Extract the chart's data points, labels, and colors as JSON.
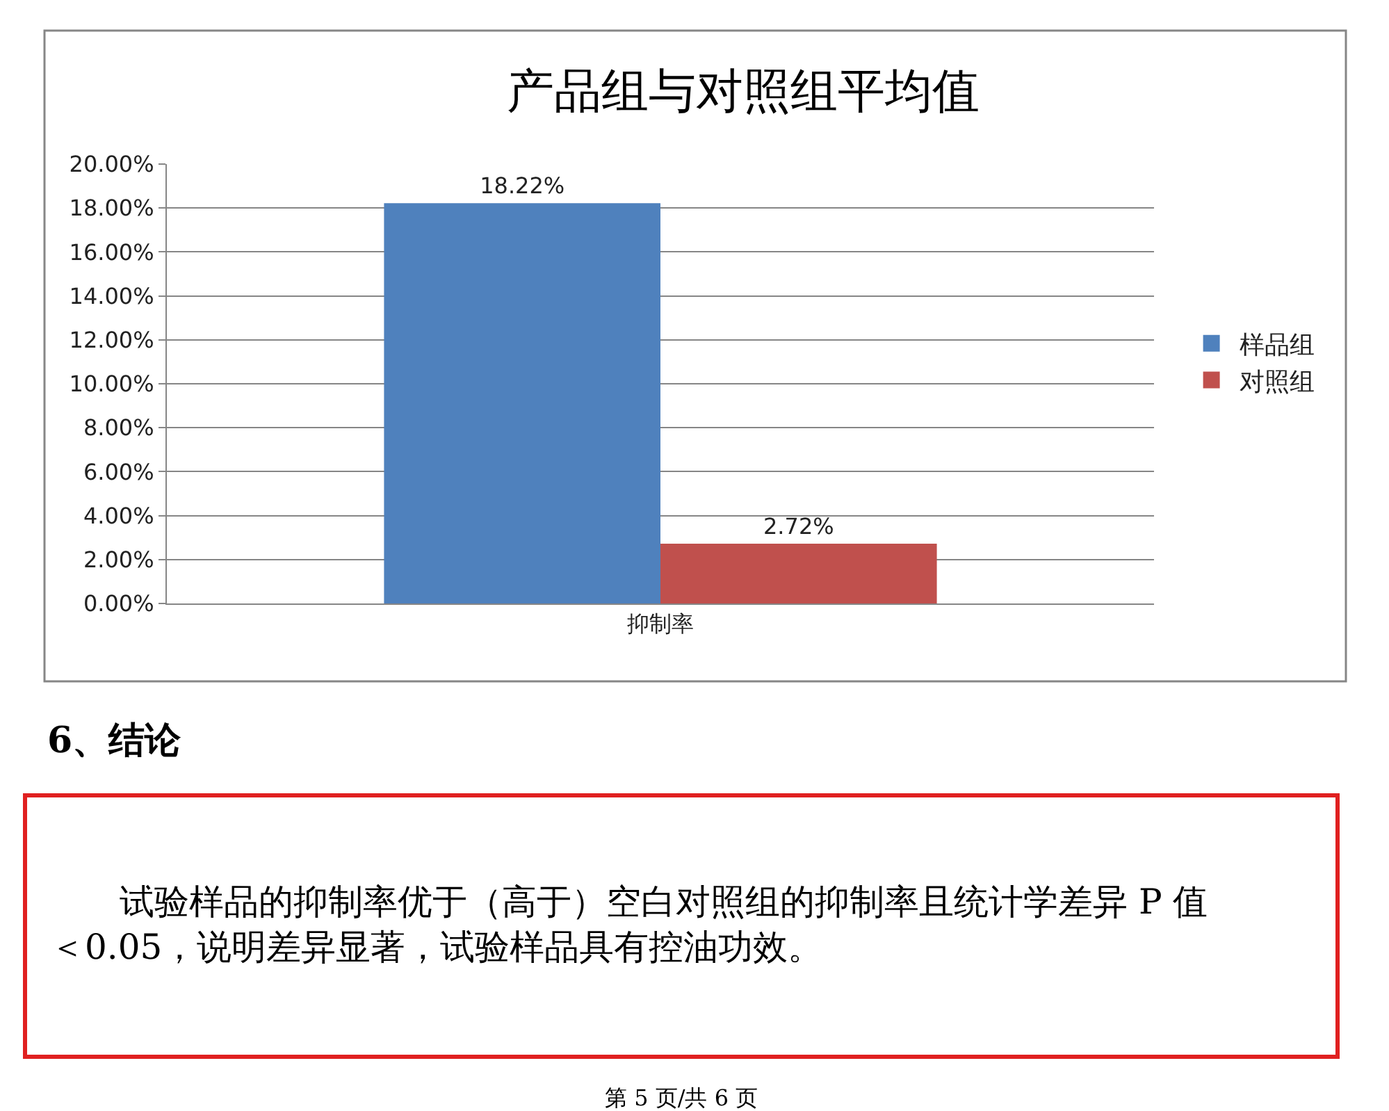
{
  "chart_data": {
    "type": "bar",
    "title": "产品组与对照组平均值",
    "categories": [
      "抑制率"
    ],
    "series": [
      {
        "name": "样品组",
        "color": "#4f81bd",
        "values": [
          18.22
        ],
        "value_labels": [
          "18.22%"
        ]
      },
      {
        "name": "对照组",
        "color": "#c0504d",
        "values": [
          2.72
        ],
        "value_labels": [
          "2.72%"
        ]
      }
    ],
    "ylim": [
      0,
      20
    ],
    "yticks": [
      {
        "value": 0,
        "label": "0.00%"
      },
      {
        "value": 2,
        "label": "2.00%"
      },
      {
        "value": 4,
        "label": "4.00%"
      },
      {
        "value": 6,
        "label": "6.00%"
      },
      {
        "value": 8,
        "label": "8.00%"
      },
      {
        "value": 10,
        "label": "10.00%"
      },
      {
        "value": 12,
        "label": "12.00%"
      },
      {
        "value": 14,
        "label": "14.00%"
      },
      {
        "value": 16,
        "label": "16.00%"
      },
      {
        "value": 18,
        "label": "18.00%"
      },
      {
        "value": 20,
        "label": "20.00%"
      }
    ],
    "grid": "y",
    "legend": "right",
    "annotations": [
      "6、结论",
      "试验样品的抑制率优于（高于）空白对照组的抑制率且统计学差异 P 值＜0.05，说明差异显著，试验样品具有控油功效。",
      "第 5 页/共 6 页"
    ]
  }
}
